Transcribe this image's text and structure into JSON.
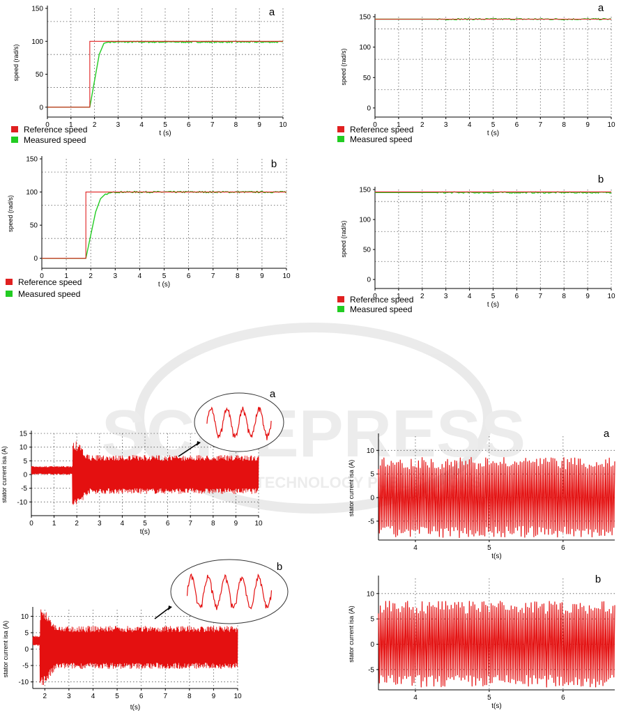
{
  "watermark": {
    "brand": "SCITEPRESS",
    "tagline": "SCIENCE AND TECHNOLOGY PUBLICATIONS"
  },
  "legend": {
    "reference": "Reference speed",
    "measured": "Measured speed"
  },
  "colors": {
    "reference": "#e02020",
    "measured": "#22cc22",
    "current": "#e41010"
  },
  "chart_data": [
    {
      "id": "speed_left_a",
      "type": "line",
      "panel_label": "a",
      "xlabel": "t (s)",
      "ylabel": "speed (rad/s)",
      "xlim": [
        0,
        10
      ],
      "ylim": [
        -15,
        150
      ],
      "xticks": [
        0,
        1,
        2,
        3,
        4,
        5,
        6,
        7,
        8,
        9,
        10
      ],
      "yticks": [
        0,
        50,
        100,
        150
      ],
      "grid": true,
      "legend": "bottom-left",
      "series": [
        {
          "name": "Reference speed",
          "x": [
            0,
            1.8,
            1.8,
            10
          ],
          "y": [
            0,
            0,
            100,
            100
          ]
        },
        {
          "name": "Measured speed",
          "x": [
            0,
            1.8,
            2.0,
            2.2,
            2.4,
            2.6,
            3.0,
            10
          ],
          "y": [
            0,
            0,
            40,
            80,
            97,
            99,
            99,
            99
          ]
        }
      ]
    },
    {
      "id": "speed_left_b",
      "type": "line",
      "panel_label": "b",
      "xlabel": "t (s)",
      "ylabel": "speed (rad/s)",
      "xlim": [
        0,
        10
      ],
      "ylim": [
        -15,
        150
      ],
      "xticks": [
        0,
        1,
        2,
        3,
        4,
        5,
        6,
        7,
        8,
        9,
        10
      ],
      "yticks": [
        0,
        50,
        100,
        150
      ],
      "grid": true,
      "legend": "bottom-left",
      "series": [
        {
          "name": "Reference speed",
          "x": [
            0,
            1.8,
            1.8,
            10
          ],
          "y": [
            0,
            0,
            100,
            100
          ]
        },
        {
          "name": "Measured speed",
          "x": [
            0,
            1.8,
            2.0,
            2.2,
            2.4,
            2.6,
            3.0,
            10
          ],
          "y": [
            0,
            0,
            35,
            70,
            90,
            97,
            100,
            100
          ]
        }
      ]
    },
    {
      "id": "speed_right_a",
      "type": "line",
      "panel_label": "a",
      "xlabel": "t (s)",
      "ylabel": "speed (rad/s)",
      "xlim": [
        0,
        10
      ],
      "ylim": [
        -15,
        150
      ],
      "xticks": [
        0,
        1,
        2,
        3,
        4,
        5,
        6,
        7,
        8,
        9,
        10
      ],
      "yticks": [
        0,
        50,
        100,
        150
      ],
      "grid": true,
      "legend": "bottom-left",
      "series": [
        {
          "name": "Reference speed",
          "x": [
            0,
            10
          ],
          "y": [
            146,
            146
          ]
        },
        {
          "name": "Measured speed",
          "x": [
            0,
            10
          ],
          "y": [
            146,
            146
          ]
        }
      ]
    },
    {
      "id": "speed_right_b",
      "type": "line",
      "panel_label": "b",
      "xlabel": "t (s)",
      "ylabel": "speed (rad/s)",
      "xlim": [
        0,
        10
      ],
      "ylim": [
        -15,
        150
      ],
      "xticks": [
        0,
        1,
        2,
        3,
        4,
        5,
        6,
        7,
        8,
        9,
        10
      ],
      "yticks": [
        0,
        50,
        100,
        150
      ],
      "grid": true,
      "legend": "bottom-left",
      "series": [
        {
          "name": "Reference speed",
          "x": [
            0,
            10
          ],
          "y": [
            146,
            146
          ]
        },
        {
          "name": "Measured speed",
          "x": [
            0,
            10
          ],
          "y": [
            145,
            145
          ]
        }
      ]
    },
    {
      "id": "current_left_a",
      "type": "line",
      "panel_label": "a",
      "xlabel": "t(s)",
      "ylabel": "stator current isa (A)",
      "xlim": [
        0,
        10
      ],
      "ylim": [
        -15,
        15
      ],
      "xticks": [
        0,
        1,
        2,
        3,
        4,
        5,
        6,
        7,
        8,
        9,
        10
      ],
      "yticks": [
        -10,
        -5,
        0,
        5,
        10,
        15
      ],
      "grid": true,
      "series": [
        {
          "name": "isa",
          "x": [
            0,
            1.8,
            1.8,
            2.0,
            2.5,
            10
          ],
          "y_upper": [
            3,
            3,
            12,
            12,
            7,
            7
          ],
          "y_lower": [
            0,
            0,
            -12,
            -12,
            -7,
            -7
          ]
        }
      ]
    },
    {
      "id": "current_left_b",
      "type": "line",
      "panel_label": "b",
      "xlabel": "t(s)",
      "ylabel": "stator current isa (A)",
      "xlim": [
        1.5,
        10
      ],
      "ylim": [
        -12,
        12
      ],
      "xticks": [
        2,
        3,
        4,
        5,
        6,
        7,
        8,
        9,
        10
      ],
      "yticks": [
        -10,
        -5,
        0,
        5,
        10
      ],
      "grid": true,
      "series": [
        {
          "name": "isa",
          "x": [
            1.5,
            1.8,
            1.8,
            2.0,
            2.5,
            10
          ],
          "y_upper": [
            4,
            4,
            12,
            12,
            7,
            7
          ],
          "y_lower": [
            1,
            1,
            -11,
            -11,
            -6,
            -6
          ]
        }
      ]
    },
    {
      "id": "current_right_a",
      "type": "line",
      "panel_label": "a",
      "xlabel": "t(s)",
      "ylabel": "stator current isa (A)",
      "xlim": [
        3.5,
        6.7
      ],
      "ylim": [
        -9,
        13
      ],
      "xticks": [
        4,
        5,
        6
      ],
      "yticks": [
        -5,
        0,
        5,
        10
      ],
      "grid": true,
      "series": [
        {
          "name": "isa",
          "x": [
            3.5,
            6.7
          ],
          "y_upper": [
            8.5,
            8.5
          ],
          "y_lower": [
            -8.5,
            -8.5
          ]
        }
      ]
    },
    {
      "id": "current_right_b",
      "type": "line",
      "panel_label": "b",
      "xlabel": "t(s)",
      "ylabel": "stator current isa (A)",
      "xlim": [
        3.5,
        6.7
      ],
      "ylim": [
        -9,
        13
      ],
      "xticks": [
        4,
        5,
        6
      ],
      "yticks": [
        -5,
        0,
        5,
        10
      ],
      "grid": true,
      "series": [
        {
          "name": "isa",
          "x": [
            3.5,
            6.7
          ],
          "y_upper": [
            8.5,
            8.5
          ],
          "y_lower": [
            -8.5,
            -8.5
          ]
        }
      ]
    }
  ]
}
